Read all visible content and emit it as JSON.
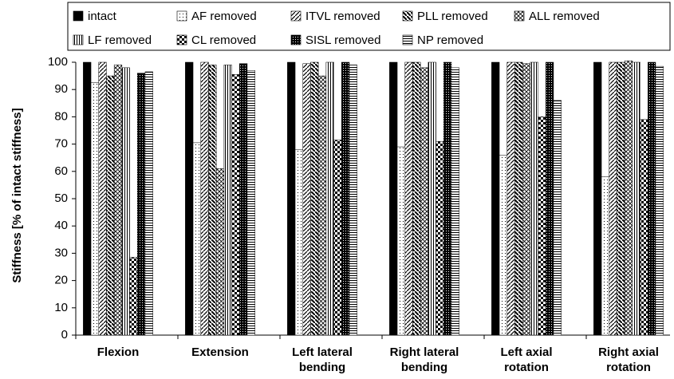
{
  "chart_data": {
    "type": "bar",
    "ylabel": "Stiffness [% of intact stiffness]",
    "categories": [
      [
        "Flexion"
      ],
      [
        "Extension"
      ],
      [
        "Left lateral",
        "bending"
      ],
      [
        "Right lateral",
        "bending"
      ],
      [
        "Left axial",
        "rotation"
      ],
      [
        "Right axial",
        "rotation"
      ]
    ],
    "ylim": [
      0,
      100
    ],
    "yticks": [
      0,
      10,
      20,
      30,
      40,
      50,
      60,
      70,
      80,
      90,
      100
    ],
    "legend": "top",
    "series": [
      {
        "name": "intact",
        "color": "#000000",
        "pattern": "solid",
        "values": [
          100,
          100,
          100,
          100,
          100,
          100
        ]
      },
      {
        "name": "AF removed",
        "color": "#000000",
        "pattern": "dots",
        "values": [
          92.5,
          70.5,
          68,
          69,
          66,
          58
        ]
      },
      {
        "name": "ITVL removed",
        "color": "#000000",
        "pattern": "diag-up",
        "values": [
          100,
          100,
          99.5,
          100,
          100,
          100
        ]
      },
      {
        "name": "PLL removed",
        "color": "#000000",
        "pattern": "diag-down",
        "values": [
          95,
          99,
          100,
          100,
          100,
          100
        ]
      },
      {
        "name": "ALL removed",
        "color": "#000000",
        "pattern": "crosshatch",
        "values": [
          99,
          61,
          95,
          98,
          99.5,
          100.5
        ]
      },
      {
        "name": "LF removed",
        "color": "#000000",
        "pattern": "vertical",
        "values": [
          98,
          99,
          100,
          100,
          100,
          100
        ]
      },
      {
        "name": "CL removed",
        "color": "#000000",
        "pattern": "checker",
        "values": [
          28.5,
          95.5,
          71.5,
          71,
          80,
          79
        ]
      },
      {
        "name": "SISL removed",
        "color": "#000000",
        "pattern": "dense",
        "values": [
          96,
          99.5,
          100,
          100,
          100,
          100
        ]
      },
      {
        "name": "NP removed",
        "color": "#000000",
        "pattern": "horizontal",
        "values": [
          96.5,
          97,
          99,
          98,
          86,
          98.5
        ]
      }
    ]
  }
}
